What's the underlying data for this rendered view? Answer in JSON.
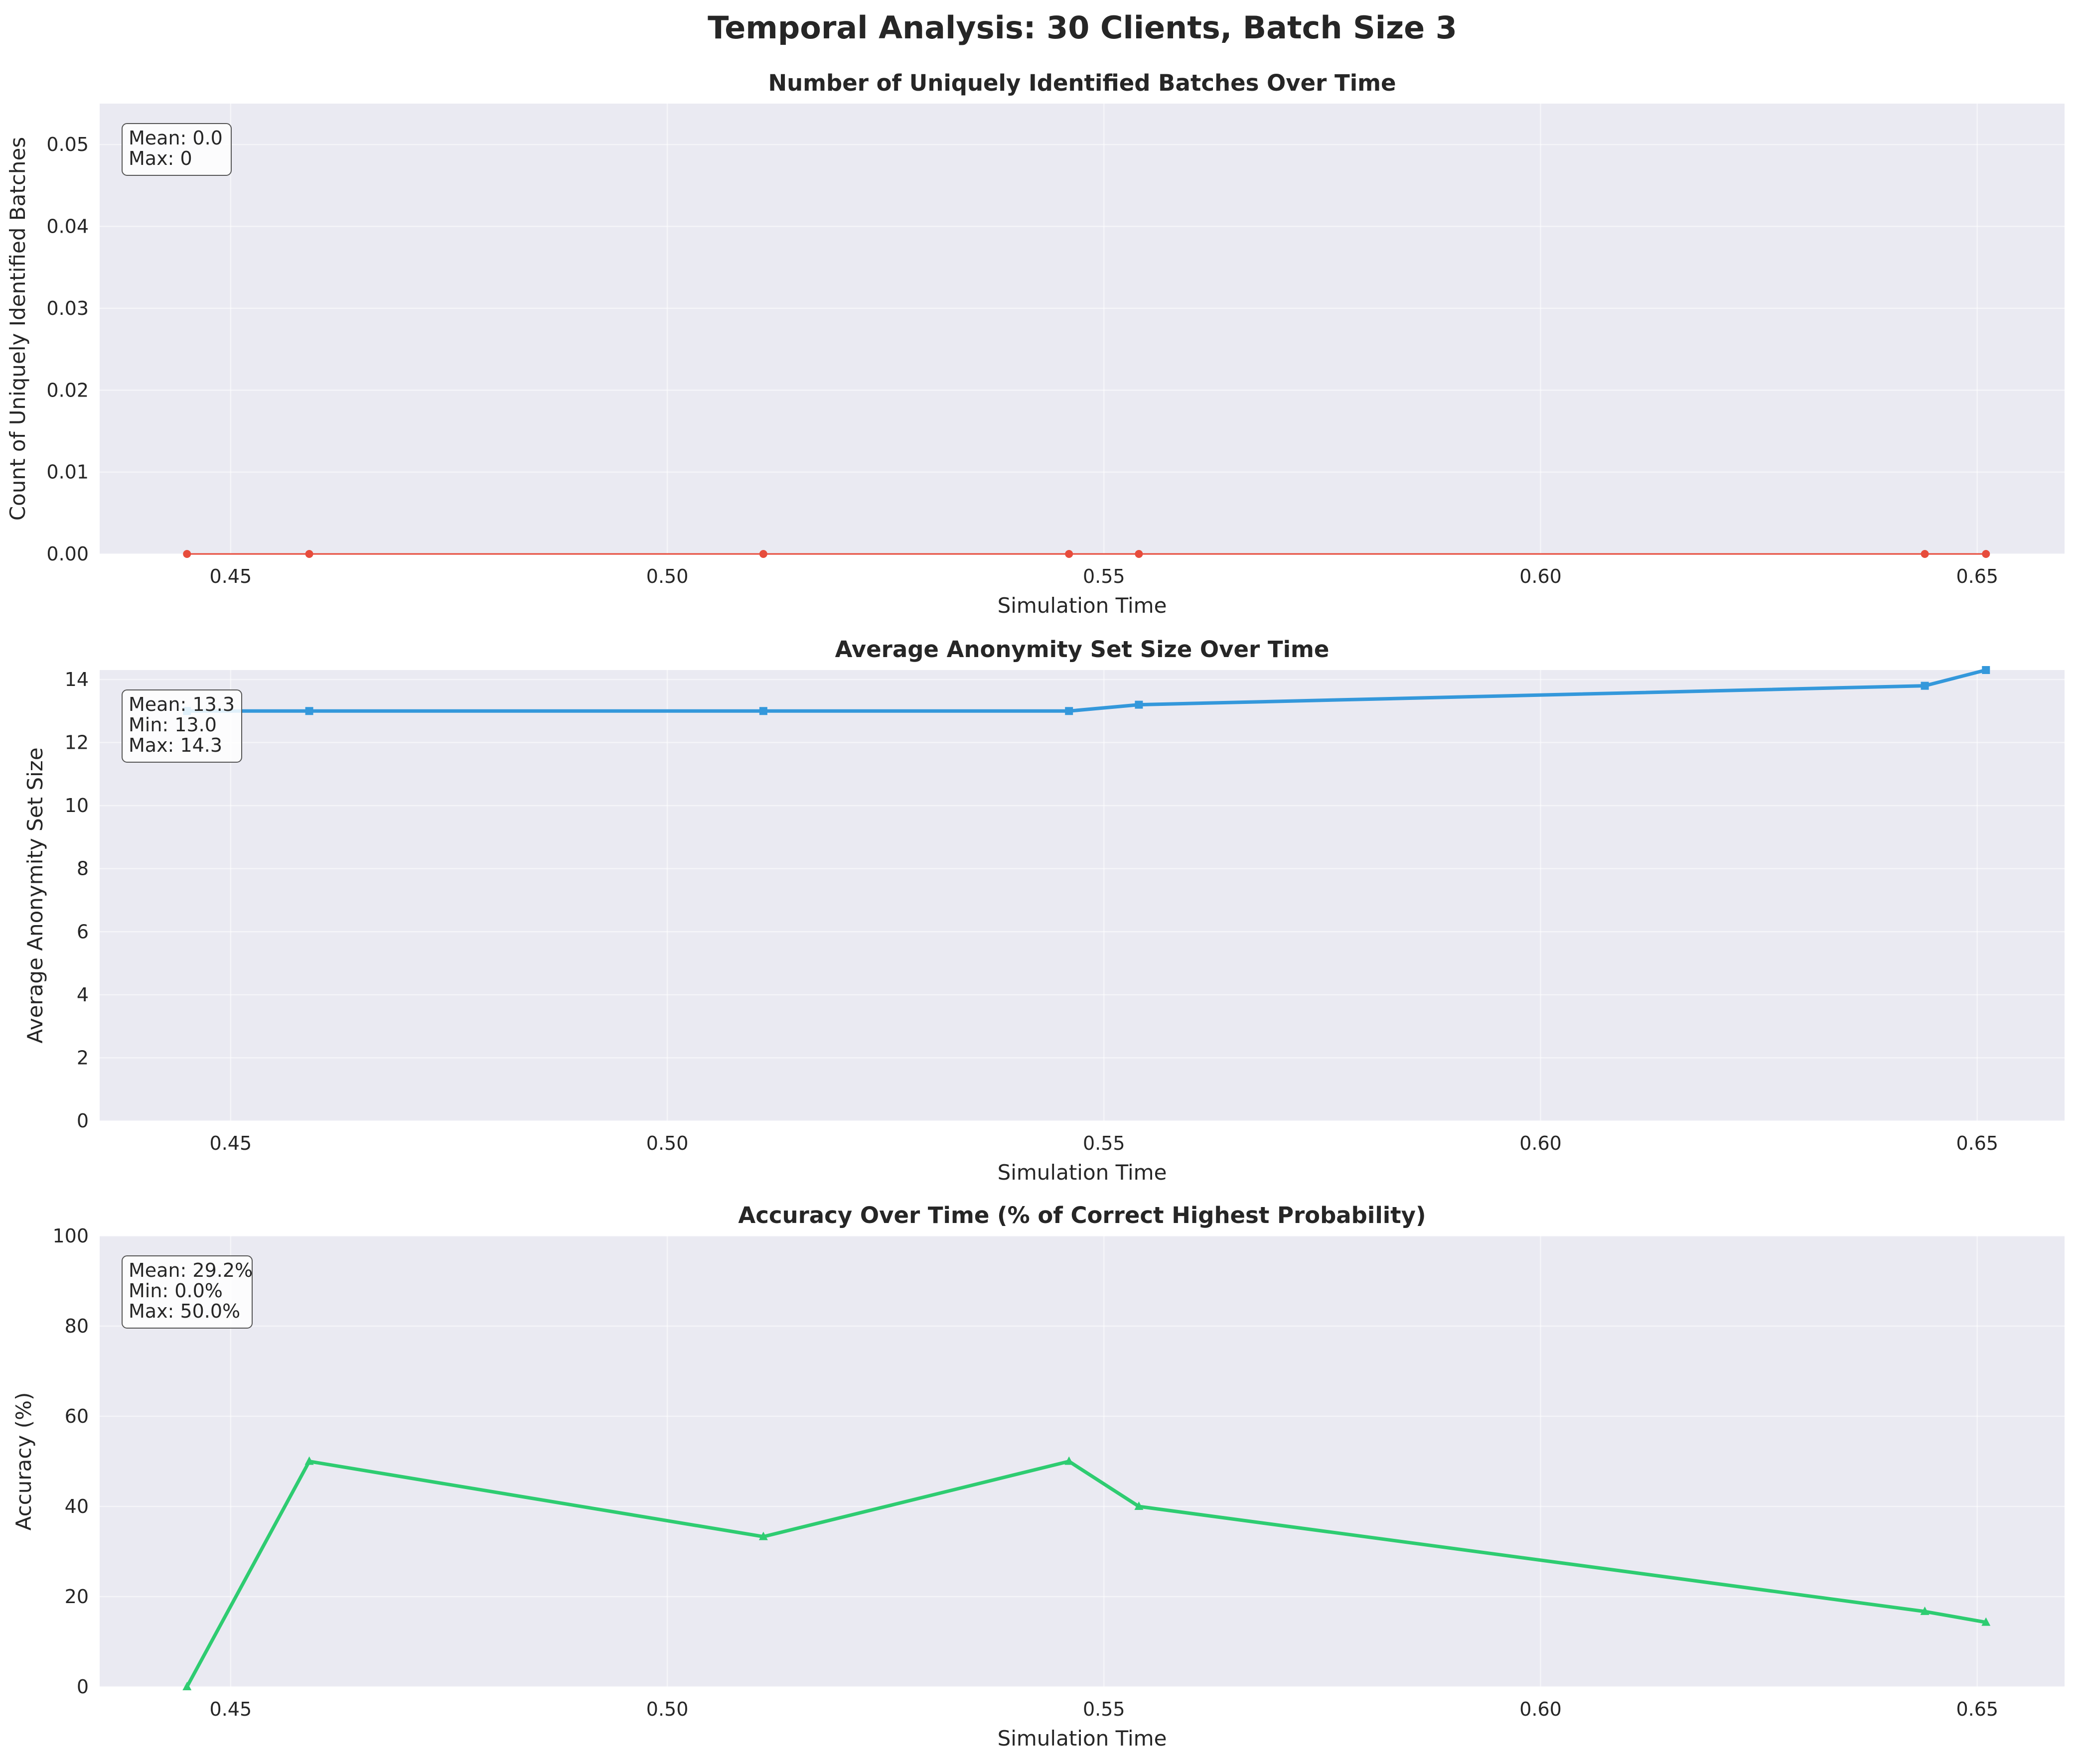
{
  "figure": {
    "title": "Temporal Analysis: 30 Clients, Batch Size 3"
  },
  "chart_data": [
    {
      "type": "line",
      "title": "Number of Uniquely Identified Batches Over Time",
      "xlabel": "Simulation Time",
      "ylabel": "Count of Uniquely Identified Batches",
      "xlim": [
        0.435,
        0.66
      ],
      "ylim": [
        0,
        0.055
      ],
      "xticks": [
        0.45,
        0.5,
        0.55,
        0.6,
        0.65
      ],
      "xtick_labels": [
        "0.45",
        "0.50",
        "0.55",
        "0.60",
        "0.65"
      ],
      "yticks": [
        0,
        0.01,
        0.02,
        0.03,
        0.04,
        0.05
      ],
      "ytick_labels": [
        "0.00",
        "0.01",
        "0.02",
        "0.03",
        "0.04",
        "0.05"
      ],
      "grid": true,
      "marker": "circle",
      "color": "#e74c3c",
      "line_width": "thin",
      "x": [
        0.445,
        0.459,
        0.511,
        0.546,
        0.554,
        0.644,
        0.651
      ],
      "y": [
        0,
        0,
        0,
        0,
        0,
        0,
        0
      ],
      "stats": [
        "Mean: 0.0",
        "Max: 0"
      ]
    },
    {
      "type": "line",
      "title": "Average Anonymity Set Size Over Time",
      "xlabel": "Simulation Time",
      "ylabel": "Average Anonymity Set Size",
      "xlim": [
        0.435,
        0.66
      ],
      "ylim": [
        0,
        14.3
      ],
      "xticks": [
        0.45,
        0.5,
        0.55,
        0.6,
        0.65
      ],
      "xtick_labels": [
        "0.45",
        "0.50",
        "0.55",
        "0.60",
        "0.65"
      ],
      "yticks": [
        0,
        2,
        4,
        6,
        8,
        10,
        12,
        14
      ],
      "ytick_labels": [
        "0",
        "2",
        "4",
        "6",
        "8",
        "10",
        "12",
        "14"
      ],
      "grid": true,
      "marker": "square",
      "color": "#3498db",
      "line_width": "thick",
      "x": [
        0.445,
        0.459,
        0.511,
        0.546,
        0.554,
        0.644,
        0.651
      ],
      "y": [
        13.0,
        13.0,
        13.0,
        13.0,
        13.2,
        13.8,
        14.3
      ],
      "stats": [
        "Mean: 13.3",
        "Min: 13.0",
        "Max: 14.3"
      ]
    },
    {
      "type": "line",
      "title": "Accuracy Over Time (% of Correct Highest Probability)",
      "xlabel": "Simulation Time",
      "ylabel": "Accuracy (%)",
      "xlim": [
        0.435,
        0.66
      ],
      "ylim": [
        0,
        100
      ],
      "xticks": [
        0.45,
        0.5,
        0.55,
        0.6,
        0.65
      ],
      "xtick_labels": [
        "0.45",
        "0.50",
        "0.55",
        "0.60",
        "0.65"
      ],
      "yticks": [
        0,
        20,
        40,
        60,
        80,
        100
      ],
      "ytick_labels": [
        "0",
        "20",
        "40",
        "60",
        "80",
        "100"
      ],
      "grid": true,
      "marker": "triangle",
      "color": "#2ecc71",
      "line_width": "thick",
      "x": [
        0.445,
        0.459,
        0.511,
        0.546,
        0.554,
        0.644,
        0.651
      ],
      "y": [
        0.0,
        50.0,
        33.3,
        50.0,
        40.0,
        16.7,
        14.3
      ],
      "stats": [
        "Mean: 29.2%",
        "Min: 0.0%",
        "Max: 50.0%"
      ]
    }
  ]
}
